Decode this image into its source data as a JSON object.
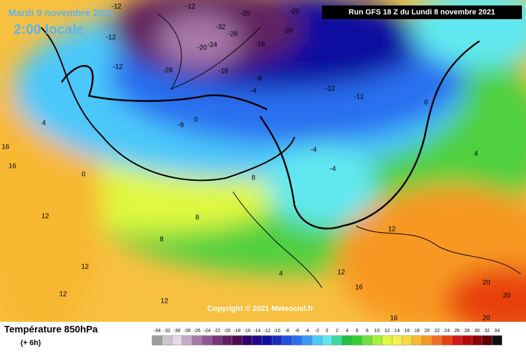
{
  "header": {
    "date": "Mardi 9 novembre 2021",
    "time": "2:00 locale",
    "run": "Run GFS 18 Z du Lundi 8 novembre 2021"
  },
  "copyright": "Copyright © 2021 Meteociel.fr",
  "footer": {
    "title": "Température 850hPa",
    "subtitle": "(+ 6h)"
  },
  "legend": {
    "ticks": [
      -34,
      -32,
      -30,
      -28,
      -26,
      -24,
      -22,
      -20,
      -18,
      -16,
      -14,
      -12,
      -10,
      -8,
      -6,
      -4,
      -2,
      0,
      2,
      4,
      6,
      8,
      10,
      12,
      14,
      16,
      18,
      20,
      22,
      24,
      26,
      28,
      30,
      32,
      34
    ],
    "colors": [
      "#9e9e9e",
      "#c8c8c8",
      "#e6d8e6",
      "#c8a8c8",
      "#a878a8",
      "#905890",
      "#783878",
      "#602060",
      "#500a50",
      "#30006a",
      "#200a8a",
      "#1010a0",
      "#1a2cc0",
      "#2050e0",
      "#2a70f0",
      "#3a9af8",
      "#4cc8fa",
      "#60e8f0",
      "#40d8a0",
      "#20c040",
      "#30d030",
      "#70e040",
      "#a8f040",
      "#e0f840",
      "#f8f050",
      "#f8d840",
      "#f8b830",
      "#f89820",
      "#f07020",
      "#e84010",
      "#d81818",
      "#b80808",
      "#900000",
      "#600000",
      "#101010"
    ]
  },
  "map_labels": [
    -12,
    -12,
    -20,
    -20,
    -12,
    -32,
    -28,
    -20,
    -24,
    -16,
    -20,
    -12,
    -28,
    -16,
    -8,
    -4,
    -12,
    -12,
    -8,
    0,
    0,
    4,
    16,
    16,
    0,
    4,
    8,
    12,
    8,
    12,
    12,
    12,
    16,
    20,
    20,
    4,
    12,
    8,
    -4,
    -4,
    12,
    16,
    20
  ]
}
